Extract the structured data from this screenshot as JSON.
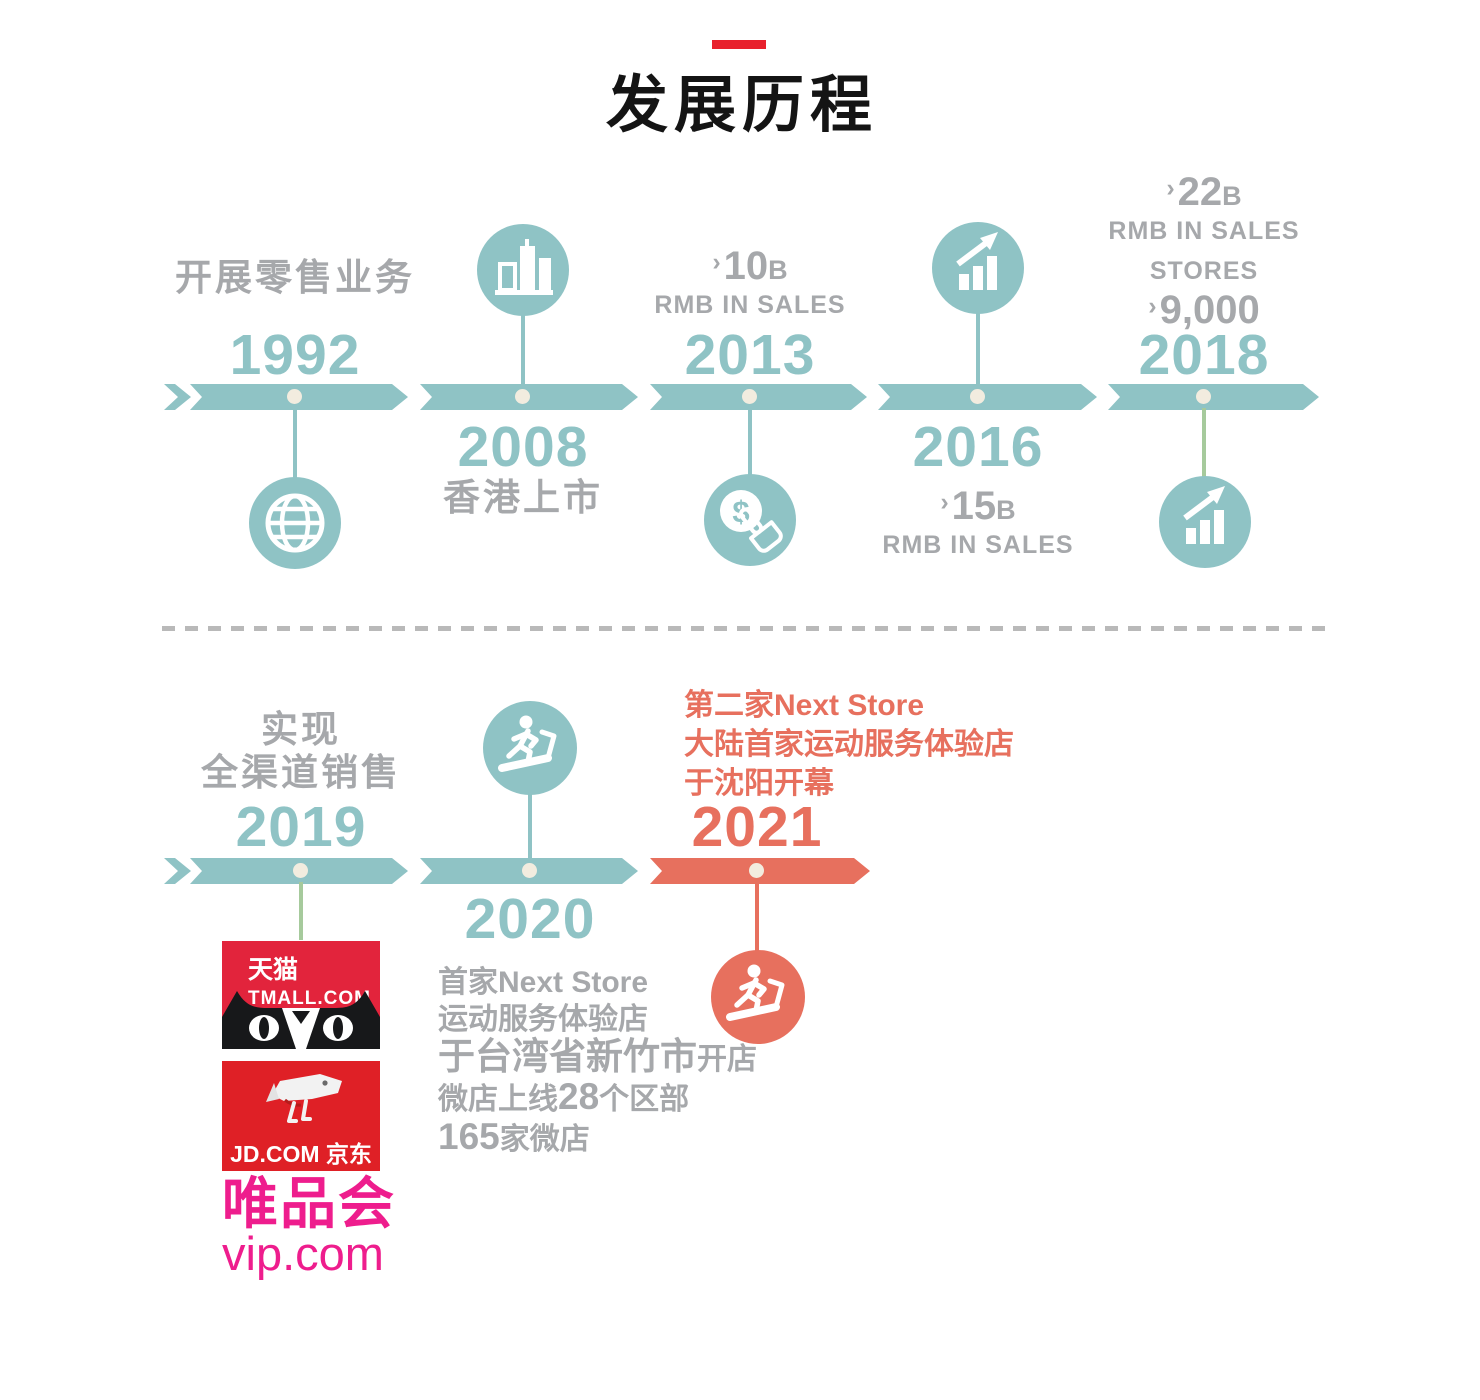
{
  "page": {
    "title": "发展历程"
  },
  "colors": {
    "teal": "#8fc3c5",
    "salmon": "#e7705e",
    "gray_text": "#a6a8ab",
    "green_connector": "#a6ca9c",
    "dot_cream": "#f2ecdf",
    "title_dash_red": "#e8212d",
    "tmall_red": "#e2243c",
    "jd_red": "#df2026",
    "vip_pink": "#ee1d8d"
  },
  "top_row": {
    "m1992": {
      "year": "1992",
      "label": "开展零售业务",
      "icon": "globe"
    },
    "m2008": {
      "year": "2008",
      "label": "香港上市",
      "icon": "buildings"
    },
    "m2013": {
      "year": "2013",
      "stat_prefix": "›",
      "stat_number": "10",
      "stat_suffix": "B",
      "stat_caption": "RMB IN SALES",
      "icon": "coin-hand"
    },
    "m2016": {
      "year": "2016",
      "stat_prefix": "›",
      "stat_number": "15",
      "stat_suffix": "B",
      "stat_caption": "RMB IN SALES",
      "icon": "growth-chart"
    },
    "m2018": {
      "year": "2018",
      "stat1_prefix": "›",
      "stat1_number": "22",
      "stat1_suffix": "B",
      "stat1_caption": "RMB IN SALES",
      "stat2_caption": "STORES",
      "stat2_prefix": "›",
      "stat2_number": "9,000",
      "icon": "growth-chart"
    }
  },
  "bottom_row": {
    "m2019": {
      "year": "2019",
      "label_line1": "实现",
      "label_line2": "全渠道销售",
      "logos": {
        "tmall_line1": "天猫",
        "tmall_line2": "TMALL.COM",
        "jd_label": "JD.COM 京东",
        "vip_line1": "唯品会",
        "vip_line2": "vip.com"
      }
    },
    "m2020": {
      "year": "2020",
      "icon": "treadmill-runner",
      "desc_lines": [
        [
          {
            "t": "首家Next Store",
            "lg": false
          }
        ],
        [
          {
            "t": "运动服务体验店",
            "lg": false
          }
        ],
        [
          {
            "t": "于台湾省新竹市",
            "lg": true
          },
          {
            "t": "开店",
            "lg": false
          }
        ],
        [
          {
            "t": "微店上线",
            "lg": false
          },
          {
            "t": "28",
            "lg": true
          },
          {
            "t": "个区部",
            "lg": false
          }
        ],
        [
          {
            "t": "165",
            "lg": true
          },
          {
            "t": "家微店",
            "lg": false
          }
        ]
      ]
    },
    "m2021": {
      "year": "2021",
      "icon": "treadmill-runner",
      "desc_line1": "第二家Next Store",
      "desc_line2": "大陆首家运动服务体验店",
      "desc_line3": "于沈阳开幕"
    }
  }
}
